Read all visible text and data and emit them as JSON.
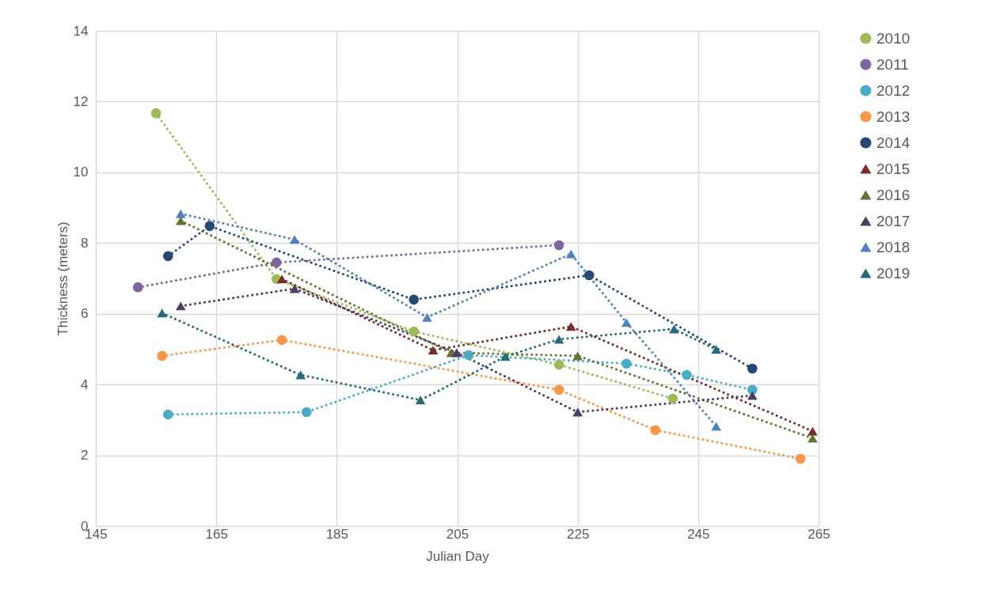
{
  "chart_data": {
    "type": "line",
    "xlabel": "Julian Day",
    "ylabel": "Thickness (meters)",
    "xlim": [
      145,
      265
    ],
    "xticks": [
      145,
      165,
      185,
      205,
      225,
      245,
      265
    ],
    "ylim": [
      0,
      14
    ],
    "yticks": [
      0,
      2,
      4,
      6,
      8,
      10,
      12,
      14
    ],
    "grid": true,
    "legend": "right",
    "line_style": "dotted",
    "series": [
      {
        "name": "2010",
        "color": "#9bbb59",
        "marker": "circle",
        "x": [
          155.0,
          175.0,
          197.8,
          221.9,
          240.8
        ],
        "values": [
          11.67,
          6.98,
          5.5,
          4.56,
          3.6
        ]
      },
      {
        "name": "2011",
        "color": "#8064a2",
        "marker": "circle",
        "x": [
          152.0,
          175.0,
          221.9
        ],
        "values": [
          6.75,
          7.45,
          7.94
        ]
      },
      {
        "name": "2012",
        "color": "#4bacc6",
        "marker": "circle",
        "x": [
          157.0,
          180.0,
          206.9,
          233.1,
          243.1,
          254.0
        ],
        "values": [
          3.15,
          3.22,
          4.83,
          4.59,
          4.27,
          3.85
        ]
      },
      {
        "name": "2013",
        "color": "#f79646",
        "marker": "circle",
        "x": [
          156.0,
          175.9,
          221.9,
          237.9,
          262.0
        ],
        "values": [
          4.81,
          5.26,
          3.85,
          2.71,
          1.9
        ]
      },
      {
        "name": "2014",
        "color": "#264a74",
        "marker": "circle",
        "x": [
          157.0,
          163.9,
          197.8,
          226.9,
          254.0
        ],
        "values": [
          7.63,
          8.48,
          6.4,
          7.09,
          4.45
        ]
      },
      {
        "name": "2015",
        "color": "#772c2a",
        "marker": "triangle",
        "x": [
          175.9,
          201.0,
          223.9,
          264.0
        ],
        "values": [
          6.98,
          4.97,
          5.64,
          2.68
        ]
      },
      {
        "name": "2016",
        "color": "#5f7530",
        "marker": "triangle",
        "x": [
          159.1,
          204.0,
          225.0,
          264.0
        ],
        "values": [
          8.63,
          4.9,
          4.81,
          2.48
        ]
      },
      {
        "name": "2017",
        "color": "#4d3b62",
        "marker": "triangle",
        "x": [
          159.1,
          178.0,
          204.9,
          225.0,
          254.0
        ],
        "values": [
          6.22,
          6.71,
          4.9,
          3.22,
          3.69
        ]
      },
      {
        "name": "2018",
        "color": "#4f81bd",
        "marker": "triangle",
        "x": [
          159.1,
          178.0,
          200.0,
          223.9,
          233.1,
          248.0
        ],
        "values": [
          8.83,
          8.1,
          5.9,
          7.69,
          5.75,
          2.82
        ]
      },
      {
        "name": "2019",
        "color": "#276a7c",
        "marker": "triangle",
        "x": [
          156.0,
          179.0,
          198.9,
          213.0,
          221.9,
          241.0,
          248.0
        ],
        "values": [
          6.02,
          4.27,
          3.56,
          4.79,
          5.28,
          5.57,
          4.99
        ]
      }
    ]
  }
}
